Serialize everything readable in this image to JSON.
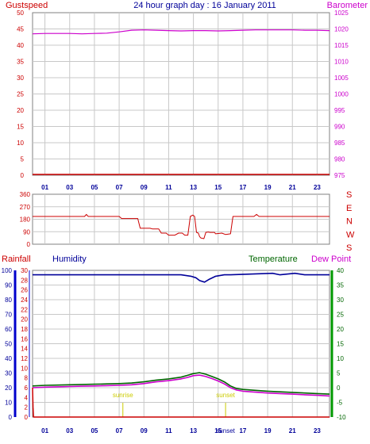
{
  "title": "24 hour graph day : 16 January 2011",
  "colors": {
    "gust": "#cc0000",
    "barometer": "#cc00cc",
    "wind_dir": "#cc0000",
    "rainfall": "#cc0000",
    "humidity": "#000099",
    "humidity_axis": "#0000cc",
    "temperature": "#006600",
    "temperature_axis": "#009900",
    "dew_point": "#cc00cc",
    "title": "#000099",
    "sun": "#cccc00",
    "grid": "#c8c8c8",
    "frame": "#808080"
  },
  "hour_ticks": [
    "01",
    "03",
    "05",
    "07",
    "09",
    "11",
    "13",
    "15",
    "17",
    "19",
    "21",
    "23"
  ],
  "chart_data": [
    {
      "type": "line",
      "name": "gust_barometer",
      "left_label": "Gustspeed",
      "right_label": "Barometer",
      "x_range": [
        0,
        24
      ],
      "left_ylim": [
        0,
        50
      ],
      "left_ticks": [
        "50",
        "45",
        "40",
        "35",
        "30",
        "25",
        "20",
        "15",
        "10",
        "5",
        "0"
      ],
      "right_ylim": [
        975,
        1025
      ],
      "right_ticks": [
        "1025",
        "1020",
        "1015",
        "1010",
        "1005",
        "1000",
        "995",
        "990",
        "985",
        "980",
        "975"
      ],
      "grid": true,
      "series": [
        {
          "name": "Gustspeed",
          "axis": "left",
          "x": [
            0,
            24
          ],
          "y": [
            0,
            0
          ]
        },
        {
          "name": "Barometer",
          "axis": "right",
          "x": [
            0,
            1,
            2,
            3,
            4,
            5,
            6,
            7,
            8,
            9,
            10,
            11,
            12,
            13,
            14,
            15,
            16,
            17,
            18,
            19,
            20,
            21,
            22,
            23,
            24
          ],
          "y": [
            1018.5,
            1018.6,
            1018.6,
            1018.6,
            1018.5,
            1018.6,
            1018.7,
            1019.1,
            1019.6,
            1019.7,
            1019.6,
            1019.5,
            1019.4,
            1019.5,
            1019.5,
            1019.4,
            1019.5,
            1019.6,
            1019.7,
            1019.7,
            1019.7,
            1019.7,
            1019.6,
            1019.6,
            1019.5
          ]
        }
      ]
    },
    {
      "type": "line",
      "name": "wind_direction",
      "left_ylim": [
        0,
        360
      ],
      "left_ticks": [
        "360",
        "270",
        "180",
        "90",
        "0"
      ],
      "right_ticks": [
        "S",
        "E",
        "N",
        "W",
        "S"
      ],
      "x_range": [
        0,
        24
      ],
      "grid": true,
      "series": [
        {
          "x": [
            0,
            4.2,
            4.35,
            4.5,
            7.0,
            7.2,
            8.5,
            8.7,
            9.5,
            9.7,
            10.2,
            10.4,
            10.8,
            11.0,
            11.5,
            11.8,
            12.1,
            12.3,
            12.55,
            12.75,
            12.95,
            13.1,
            13.25,
            13.4,
            13.5,
            13.6,
            13.85,
            14.0,
            14.2,
            14.35,
            14.7,
            14.8,
            15.3,
            15.6,
            16.0,
            16.2,
            17.9,
            18.1,
            18.3,
            24
          ],
          "y": [
            200,
            200,
            215,
            200,
            200,
            185,
            185,
            115,
            115,
            110,
            110,
            80,
            80,
            65,
            65,
            80,
            80,
            65,
            65,
            200,
            210,
            200,
            85,
            80,
            55,
            45,
            40,
            85,
            88,
            85,
            85,
            75,
            80,
            70,
            75,
            200,
            200,
            215,
            200,
            200
          ]
        }
      ]
    },
    {
      "type": "line",
      "name": "rain_humidity_temp",
      "labels": [
        "Rainfall",
        "Humidity",
        "Temperature",
        "Dew Point"
      ],
      "x_range": [
        0,
        24
      ],
      "rain_ticks": [
        "30",
        "28",
        "26",
        "24",
        "22",
        "20",
        "18",
        "16",
        "14",
        "12",
        "10",
        "8",
        "6",
        "4",
        "2",
        "0"
      ],
      "rain_ylim": [
        0,
        30
      ],
      "humidity_ticks": [
        "100",
        "90",
        "80",
        "70",
        "60",
        "50",
        "40",
        "30",
        "20",
        "10",
        "0"
      ],
      "humidity_ylim": [
        0,
        100
      ],
      "temperature_ticks": [
        "40",
        "35",
        "30",
        "25",
        "20",
        "15",
        "10",
        "5",
        "0",
        "-5",
        "-10"
      ],
      "temperature_ylim": [
        -10,
        40
      ],
      "sunrise_label": "sunrise",
      "sunset_label": "sunset",
      "sunset_axis_label": "sunset",
      "sunrise_hour": 7.3,
      "sunset_hour": 15.6,
      "grid": true,
      "series": [
        {
          "name": "Rainfall",
          "axis": "rain",
          "x": [
            0,
            0.04,
            0.08,
            24
          ],
          "y": [
            6.0,
            2.0,
            0,
            0
          ]
        },
        {
          "name": "Humidity",
          "axis": "humidity",
          "x": [
            0,
            4,
            8,
            12,
            12.8,
            13.2,
            13.5,
            13.9,
            14.3,
            14.8,
            15.5,
            16,
            19.4,
            20,
            21.2,
            22,
            24
          ],
          "y": [
            97,
            97,
            97,
            97,
            96,
            95,
            93,
            92,
            94,
            96,
            97,
            97,
            98,
            97,
            98,
            97,
            97
          ]
        },
        {
          "name": "Temperature",
          "axis": "temperature",
          "x": [
            0,
            1,
            2,
            3,
            4,
            5,
            6,
            7,
            8,
            9,
            10,
            11,
            12,
            12.5,
            13,
            13.5,
            14,
            14.5,
            15,
            15.5,
            16,
            16.5,
            17,
            18,
            19,
            20,
            21,
            22,
            23,
            24
          ],
          "y": [
            0.6,
            0.8,
            0.9,
            1.0,
            1.1,
            1.2,
            1.3,
            1.4,
            1.6,
            2.0,
            2.6,
            3.0,
            3.6,
            4.2,
            4.8,
            5.1,
            4.6,
            3.8,
            3.0,
            2.0,
            0.6,
            -0.3,
            -0.6,
            -0.9,
            -1.2,
            -1.4,
            -1.6,
            -1.8,
            -2.0,
            -2.2
          ]
        },
        {
          "name": "Dew Point",
          "axis": "temperature",
          "x": [
            0,
            1,
            2,
            3,
            4,
            5,
            6,
            7,
            8,
            9,
            10,
            11,
            12,
            12.5,
            13,
            13.5,
            14,
            14.5,
            15,
            15.5,
            16,
            16.5,
            17,
            18,
            19,
            20,
            21,
            22,
            23,
            24
          ],
          "y": [
            0.0,
            0.2,
            0.3,
            0.4,
            0.5,
            0.6,
            0.7,
            0.8,
            1.0,
            1.4,
            2.0,
            2.4,
            3.0,
            3.5,
            4.1,
            4.3,
            3.8,
            3.1,
            2.3,
            1.3,
            0.0,
            -0.8,
            -1.2,
            -1.5,
            -1.8,
            -2.0,
            -2.2,
            -2.4,
            -2.6,
            -2.8
          ]
        }
      ]
    }
  ]
}
